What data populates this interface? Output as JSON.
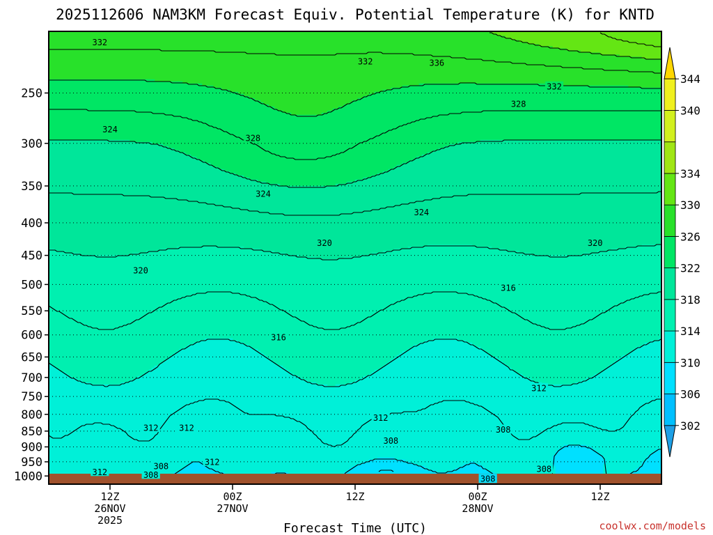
{
  "chart_data": {
    "type": "heatmap",
    "title": "2025112606 NAM3KM Forecast Equiv. Potential Temperature (K) for KNTD",
    "xlabel": "Forecast Time (UTC)",
    "ylabel": "",
    "x_ticks": [
      {
        "hour": 6,
        "lines": [
          "12Z",
          "26NOV",
          "2025"
        ]
      },
      {
        "hour": 18,
        "lines": [
          "00Z",
          "27NOV"
        ]
      },
      {
        "hour": 30,
        "lines": [
          "12Z"
        ]
      },
      {
        "hour": 42,
        "lines": [
          "00Z",
          "28NOV"
        ]
      },
      {
        "hour": 54,
        "lines": [
          "12Z"
        ]
      }
    ],
    "xlim": [
      0,
      60
    ],
    "y_ticks": [
      "250",
      "300",
      "350",
      "400",
      "450",
      "500",
      "550",
      "600",
      "650",
      "700",
      "750",
      "800",
      "850",
      "900",
      "950",
      "1000"
    ],
    "y_tick_values": [
      250,
      300,
      350,
      400,
      450,
      500,
      550,
      600,
      650,
      700,
      750,
      800,
      850,
      900,
      950,
      1000
    ],
    "y_scale": "log",
    "ylim": [
      200,
      1030
    ],
    "y_inverted": true,
    "grid": "dotted horizontal at pressure levels",
    "colorbar": {
      "ticks": [
        "302",
        "306",
        "310",
        "314",
        "318",
        "322",
        "326",
        "330",
        "334",
        "340",
        "344"
      ],
      "levels": [
        298,
        302,
        306,
        310,
        314,
        318,
        322,
        326,
        330,
        334,
        336,
        340,
        344,
        348
      ],
      "colors": [
        "#1ea0e6",
        "#00c0ff",
        "#00e0ff",
        "#00f0d8",
        "#00f0b0",
        "#00e69a",
        "#00e664",
        "#28e12a",
        "#64e614",
        "#a0e614",
        "#d2f01e",
        "#f0f01e",
        "#ffd700"
      ]
    },
    "ground_color": "#a0522d",
    "contour_interval": 2,
    "contour_labels": [
      {
        "value": "332",
        "x": 5.0,
        "p": 208
      },
      {
        "value": "332",
        "x": 31.0,
        "p": 223
      },
      {
        "value": "336",
        "x": 38.0,
        "p": 224
      },
      {
        "value": "332",
        "x": 49.5,
        "p": 244
      },
      {
        "value": "328",
        "x": 46.0,
        "p": 260
      },
      {
        "value": "328",
        "x": 20.0,
        "p": 294
      },
      {
        "value": "324",
        "x": 6.0,
        "p": 285
      },
      {
        "value": "324",
        "x": 21.0,
        "p": 360
      },
      {
        "value": "324",
        "x": 36.5,
        "p": 385
      },
      {
        "value": "320",
        "x": 27.0,
        "p": 430
      },
      {
        "value": "320",
        "x": 53.5,
        "p": 430
      },
      {
        "value": "320",
        "x": 9.0,
        "p": 475
      },
      {
        "value": "316",
        "x": 45.0,
        "p": 506
      },
      {
        "value": "316",
        "x": 22.5,
        "p": 605
      },
      {
        "value": "312",
        "x": 48.0,
        "p": 727
      },
      {
        "value": "312",
        "x": 32.5,
        "p": 810
      },
      {
        "value": "312",
        "x": 10.0,
        "p": 840
      },
      {
        "value": "312",
        "x": 13.5,
        "p": 840
      },
      {
        "value": "308",
        "x": 33.5,
        "p": 880
      },
      {
        "value": "308",
        "x": 44.5,
        "p": 845
      },
      {
        "value": "312",
        "x": 16.0,
        "p": 950
      },
      {
        "value": "308",
        "x": 11.0,
        "p": 965
      },
      {
        "value": "312",
        "x": 5.0,
        "p": 985
      },
      {
        "value": "308",
        "x": 10.0,
        "p": 995
      },
      {
        "value": "308",
        "x": 48.5,
        "p": 975
      },
      {
        "value": "308",
        "x": 43.0,
        "p": 1010
      }
    ]
  },
  "credit": "coolwx.com/models"
}
